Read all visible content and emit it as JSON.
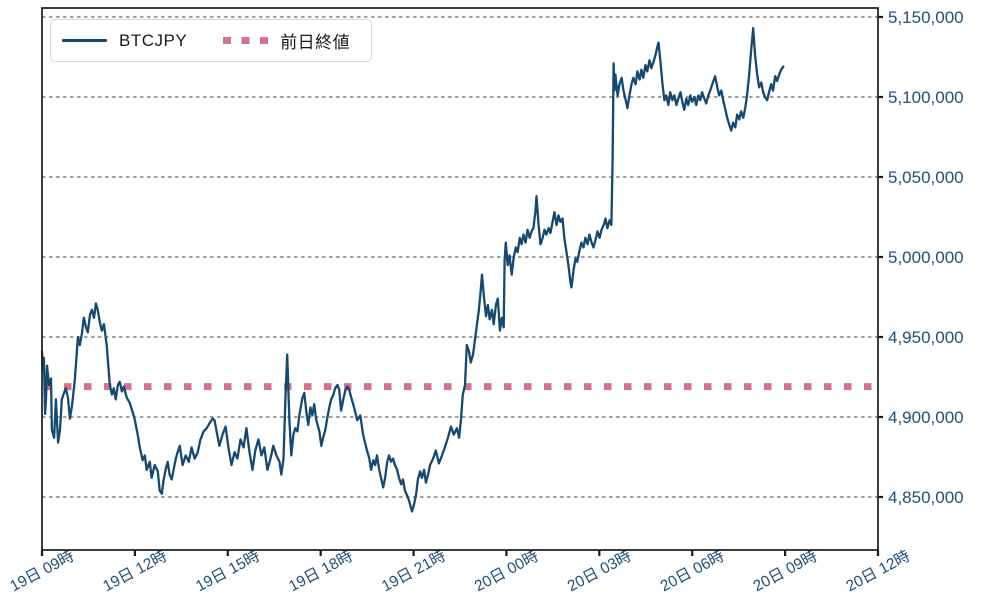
{
  "chart_data": {
    "type": "line",
    "title": "",
    "grid": "horizontal-dashed",
    "legend": {
      "position": "top-left",
      "entries": [
        {
          "label": "BTCJPY",
          "style": "solid-line"
        },
        {
          "label": "前日終値",
          "style": "dotted-line"
        }
      ]
    },
    "colors": {
      "price_line": "#17486e",
      "prev_close_line": "#d4738f",
      "axis_label": "#1f4e79",
      "grid": "#333333",
      "spine": "#1a1a1a",
      "legend_text": "#1a1a1a",
      "background": "#ffffff"
    },
    "x_axis": {
      "max_hours": 27,
      "ticks": [
        {
          "hours": 0,
          "label": "19日 09時"
        },
        {
          "hours": 3,
          "label": "19日 12時"
        },
        {
          "hours": 6,
          "label": "19日 15時"
        },
        {
          "hours": 9,
          "label": "19日 18時"
        },
        {
          "hours": 12,
          "label": "19日 21時"
        },
        {
          "hours": 15,
          "label": "20日 00時"
        },
        {
          "hours": 18,
          "label": "20日 03時"
        },
        {
          "hours": 21,
          "label": "20日 06時"
        },
        {
          "hours": 24,
          "label": "20日 09時"
        },
        {
          "hours": 27,
          "label": "20日 12時"
        }
      ]
    },
    "y_axis": {
      "side": "right",
      "tick_values": [
        4850000,
        4900000,
        4950000,
        5000000,
        5050000,
        5100000,
        5150000
      ],
      "tick_labels": [
        "4,850,000",
        "4,900,000",
        "4,950,000",
        "5,000,000",
        "5,050,000",
        "5,100,000",
        "5,150,000"
      ],
      "range": [
        4817000,
        5156000
      ]
    },
    "series_name": "BTCJPY",
    "prev_close_name": "前日終値",
    "prev_close_value": 4919000,
    "points": [
      [
        0.0,
        4941000
      ],
      [
        0.03,
        4929000
      ],
      [
        0.06,
        4937000
      ],
      [
        0.1,
        4902000
      ],
      [
        0.13,
        4911000
      ],
      [
        0.16,
        4932000
      ],
      [
        0.23,
        4920000
      ],
      [
        0.29,
        4924000
      ],
      [
        0.32,
        4892000
      ],
      [
        0.39,
        4887000
      ],
      [
        0.45,
        4911000
      ],
      [
        0.52,
        4884000
      ],
      [
        0.58,
        4892000
      ],
      [
        0.64,
        4911000
      ],
      [
        0.71,
        4915000
      ],
      [
        0.77,
        4918000
      ],
      [
        0.84,
        4912000
      ],
      [
        0.9,
        4899000
      ],
      [
        0.97,
        4907000
      ],
      [
        1.06,
        4923000
      ],
      [
        1.16,
        4950000
      ],
      [
        1.22,
        4945000
      ],
      [
        1.29,
        4952000
      ],
      [
        1.35,
        4962000
      ],
      [
        1.42,
        4956000
      ],
      [
        1.48,
        4953000
      ],
      [
        1.55,
        4964000
      ],
      [
        1.61,
        4967000
      ],
      [
        1.68,
        4962000
      ],
      [
        1.74,
        4971000
      ],
      [
        1.8,
        4967000
      ],
      [
        1.87,
        4959000
      ],
      [
        1.93,
        4954000
      ],
      [
        2.0,
        4958000
      ],
      [
        2.09,
        4945000
      ],
      [
        2.19,
        4920000
      ],
      [
        2.26,
        4914000
      ],
      [
        2.32,
        4918000
      ],
      [
        2.38,
        4911000
      ],
      [
        2.45,
        4920000
      ],
      [
        2.51,
        4922000
      ],
      [
        2.58,
        4916000
      ],
      [
        2.64,
        4919000
      ],
      [
        2.74,
        4912000
      ],
      [
        2.83,
        4909000
      ],
      [
        2.93,
        4903000
      ],
      [
        3.0,
        4898000
      ],
      [
        3.09,
        4889000
      ],
      [
        3.16,
        4881000
      ],
      [
        3.25,
        4873000
      ],
      [
        3.32,
        4876000
      ],
      [
        3.38,
        4867000
      ],
      [
        3.48,
        4872000
      ],
      [
        3.54,
        4862000
      ],
      [
        3.64,
        4870000
      ],
      [
        3.74,
        4866000
      ],
      [
        3.8,
        4854000
      ],
      [
        3.87,
        4852000
      ],
      [
        3.93,
        4861000
      ],
      [
        4.0,
        4868000
      ],
      [
        4.06,
        4872000
      ],
      [
        4.12,
        4864000
      ],
      [
        4.19,
        4861000
      ],
      [
        4.25,
        4867000
      ],
      [
        4.32,
        4874000
      ],
      [
        4.38,
        4878000
      ],
      [
        4.45,
        4882000
      ],
      [
        4.54,
        4870000
      ],
      [
        4.64,
        4876000
      ],
      [
        4.74,
        4872000
      ],
      [
        4.83,
        4881000
      ],
      [
        4.93,
        4874000
      ],
      [
        5.03,
        4878000
      ],
      [
        5.12,
        4886000
      ],
      [
        5.22,
        4891000
      ],
      [
        5.32,
        4893000
      ],
      [
        5.41,
        4896000
      ],
      [
        5.51,
        4899000
      ],
      [
        5.57,
        4898000
      ],
      [
        5.64,
        4891000
      ],
      [
        5.73,
        4882000
      ],
      [
        5.83,
        4889000
      ],
      [
        5.93,
        4894000
      ],
      [
        6.02,
        4881000
      ],
      [
        6.12,
        4870000
      ],
      [
        6.22,
        4878000
      ],
      [
        6.31,
        4874000
      ],
      [
        6.41,
        4886000
      ],
      [
        6.51,
        4881000
      ],
      [
        6.6,
        4893000
      ],
      [
        6.7,
        4878000
      ],
      [
        6.8,
        4867000
      ],
      [
        6.89,
        4879000
      ],
      [
        6.99,
        4886000
      ],
      [
        7.09,
        4876000
      ],
      [
        7.18,
        4881000
      ],
      [
        7.28,
        4867000
      ],
      [
        7.38,
        4874000
      ],
      [
        7.47,
        4882000
      ],
      [
        7.57,
        4876000
      ],
      [
        7.67,
        4872000
      ],
      [
        7.73,
        4864000
      ],
      [
        7.8,
        4874000
      ],
      [
        7.86,
        4911000
      ],
      [
        7.92,
        4939000
      ],
      [
        7.99,
        4898000
      ],
      [
        8.05,
        4876000
      ],
      [
        8.12,
        4889000
      ],
      [
        8.18,
        4893000
      ],
      [
        8.25,
        4891000
      ],
      [
        8.31,
        4901000
      ],
      [
        8.41,
        4912000
      ],
      [
        8.47,
        4915000
      ],
      [
        8.54,
        4903000
      ],
      [
        8.6,
        4895000
      ],
      [
        8.67,
        4906000
      ],
      [
        8.73,
        4901000
      ],
      [
        8.79,
        4908000
      ],
      [
        8.86,
        4898000
      ],
      [
        8.96,
        4891000
      ],
      [
        9.02,
        4882000
      ],
      [
        9.08,
        4887000
      ],
      [
        9.15,
        4892000
      ],
      [
        9.21,
        4899000
      ],
      [
        9.28,
        4906000
      ],
      [
        9.34,
        4911000
      ],
      [
        9.41,
        4914000
      ],
      [
        9.47,
        4918000
      ],
      [
        9.54,
        4920000
      ],
      [
        9.6,
        4917000
      ],
      [
        9.66,
        4904000
      ],
      [
        9.73,
        4911000
      ],
      [
        9.79,
        4916000
      ],
      [
        9.86,
        4919000
      ],
      [
        9.92,
        4917000
      ],
      [
        9.99,
        4912000
      ],
      [
        10.08,
        4906000
      ],
      [
        10.18,
        4898000
      ],
      [
        10.28,
        4901000
      ],
      [
        10.37,
        4889000
      ],
      [
        10.47,
        4881000
      ],
      [
        10.57,
        4874000
      ],
      [
        10.63,
        4867000
      ],
      [
        10.7,
        4873000
      ],
      [
        10.76,
        4870000
      ],
      [
        10.82,
        4876000
      ],
      [
        10.89,
        4867000
      ],
      [
        10.95,
        4862000
      ],
      [
        11.02,
        4856000
      ],
      [
        11.08,
        4862000
      ],
      [
        11.15,
        4872000
      ],
      [
        11.21,
        4876000
      ],
      [
        11.27,
        4872000
      ],
      [
        11.34,
        4874000
      ],
      [
        11.4,
        4870000
      ],
      [
        11.47,
        4867000
      ],
      [
        11.53,
        4862000
      ],
      [
        11.6,
        4858000
      ],
      [
        11.66,
        4861000
      ],
      [
        11.72,
        4854000
      ],
      [
        11.79,
        4851000
      ],
      [
        11.85,
        4848000
      ],
      [
        11.92,
        4843000
      ],
      [
        11.95,
        4841000
      ],
      [
        12.01,
        4845000
      ],
      [
        12.08,
        4851000
      ],
      [
        12.14,
        4861000
      ],
      [
        12.21,
        4866000
      ],
      [
        12.27,
        4862000
      ],
      [
        12.34,
        4867000
      ],
      [
        12.4,
        4859000
      ],
      [
        12.47,
        4864000
      ],
      [
        12.53,
        4870000
      ],
      [
        12.63,
        4874000
      ],
      [
        12.72,
        4879000
      ],
      [
        12.82,
        4871000
      ],
      [
        12.92,
        4876000
      ],
      [
        13.01,
        4881000
      ],
      [
        13.11,
        4887000
      ],
      [
        13.21,
        4894000
      ],
      [
        13.3,
        4889000
      ],
      [
        13.4,
        4893000
      ],
      [
        13.47,
        4887000
      ],
      [
        13.53,
        4898000
      ],
      [
        13.59,
        4914000
      ],
      [
        13.66,
        4920000
      ],
      [
        13.72,
        4945000
      ],
      [
        13.79,
        4941000
      ],
      [
        13.85,
        4934000
      ],
      [
        13.92,
        4939000
      ],
      [
        13.98,
        4948000
      ],
      [
        14.05,
        4958000
      ],
      [
        14.11,
        4967000
      ],
      [
        14.17,
        4979000
      ],
      [
        14.21,
        4989000
      ],
      [
        14.27,
        4976000
      ],
      [
        14.34,
        4963000
      ],
      [
        14.4,
        4970000
      ],
      [
        14.46,
        4961000
      ],
      [
        14.53,
        4967000
      ],
      [
        14.59,
        4958000
      ],
      [
        14.66,
        4970000
      ],
      [
        14.72,
        4974000
      ],
      [
        14.79,
        4954000
      ],
      [
        14.85,
        4962000
      ],
      [
        14.91,
        4956000
      ],
      [
        14.94,
        4998000
      ],
      [
        14.98,
        5009000
      ],
      [
        15.04,
        4995000
      ],
      [
        15.1,
        5001000
      ],
      [
        15.17,
        4989000
      ],
      [
        15.23,
        4999000
      ],
      [
        15.3,
        5006000
      ],
      [
        15.36,
        5003000
      ],
      [
        15.43,
        5012000
      ],
      [
        15.49,
        5008000
      ],
      [
        15.55,
        5014000
      ],
      [
        15.62,
        5009000
      ],
      [
        15.68,
        5017000
      ],
      [
        15.75,
        5012000
      ],
      [
        15.81,
        5016000
      ],
      [
        15.87,
        5018000
      ],
      [
        15.94,
        5029000
      ],
      [
        15.97,
        5038000
      ],
      [
        16.04,
        5020000
      ],
      [
        16.1,
        5008000
      ],
      [
        16.17,
        5012000
      ],
      [
        16.23,
        5017000
      ],
      [
        16.29,
        5014000
      ],
      [
        16.36,
        5018000
      ],
      [
        16.42,
        5015000
      ],
      [
        16.49,
        5022000
      ],
      [
        16.55,
        5028000
      ],
      [
        16.62,
        5020000
      ],
      [
        16.68,
        5026000
      ],
      [
        16.74,
        5022000
      ],
      [
        16.81,
        5024000
      ],
      [
        16.87,
        5012000
      ],
      [
        16.94,
        5003000
      ],
      [
        17.0,
        4995000
      ],
      [
        17.07,
        4984000
      ],
      [
        17.1,
        4981000
      ],
      [
        17.17,
        4992000
      ],
      [
        17.23,
        4999000
      ],
      [
        17.29,
        4997000
      ],
      [
        17.36,
        5004000
      ],
      [
        17.42,
        5009000
      ],
      [
        17.49,
        5006000
      ],
      [
        17.55,
        5012000
      ],
      [
        17.62,
        5008000
      ],
      [
        17.68,
        5014000
      ],
      [
        17.75,
        5009000
      ],
      [
        17.81,
        5006000
      ],
      [
        17.88,
        5011000
      ],
      [
        17.94,
        5016000
      ],
      [
        18.01,
        5012000
      ],
      [
        18.07,
        5017000
      ],
      [
        18.14,
        5020000
      ],
      [
        18.2,
        5024000
      ],
      [
        18.26,
        5018000
      ],
      [
        18.33,
        5023000
      ],
      [
        18.39,
        5020000
      ],
      [
        18.43,
        5061000
      ],
      [
        18.46,
        5121000
      ],
      [
        18.49,
        5104000
      ],
      [
        18.52,
        5114000
      ],
      [
        18.59,
        5101000
      ],
      [
        18.65,
        5108000
      ],
      [
        18.72,
        5112000
      ],
      [
        18.78,
        5104000
      ],
      [
        18.85,
        5098000
      ],
      [
        18.91,
        5093000
      ],
      [
        18.97,
        5101000
      ],
      [
        19.04,
        5108000
      ],
      [
        19.1,
        5112000
      ],
      [
        19.17,
        5108000
      ],
      [
        19.23,
        5116000
      ],
      [
        19.3,
        5111000
      ],
      [
        19.36,
        5117000
      ],
      [
        19.42,
        5112000
      ],
      [
        19.49,
        5120000
      ],
      [
        19.55,
        5116000
      ],
      [
        19.62,
        5123000
      ],
      [
        19.68,
        5118000
      ],
      [
        19.75,
        5122000
      ],
      [
        19.81,
        5126000
      ],
      [
        19.87,
        5131000
      ],
      [
        19.91,
        5134000
      ],
      [
        19.97,
        5123000
      ],
      [
        20.04,
        5108000
      ],
      [
        20.1,
        5098000
      ],
      [
        20.16,
        5101000
      ],
      [
        20.23,
        5095000
      ],
      [
        20.29,
        5103000
      ],
      [
        20.36,
        5098000
      ],
      [
        20.42,
        5101000
      ],
      [
        20.49,
        5095000
      ],
      [
        20.55,
        5099000
      ],
      [
        20.62,
        5103000
      ],
      [
        20.68,
        5097000
      ],
      [
        20.74,
        5092000
      ],
      [
        20.81,
        5099000
      ],
      [
        20.87,
        5095000
      ],
      [
        20.94,
        5101000
      ],
      [
        21.0,
        5097000
      ],
      [
        21.07,
        5100000
      ],
      [
        21.13,
        5095000
      ],
      [
        21.2,
        5101000
      ],
      [
        21.26,
        5098000
      ],
      [
        21.32,
        5103000
      ],
      [
        21.39,
        5099000
      ],
      [
        21.45,
        5096000
      ],
      [
        21.52,
        5101000
      ],
      [
        21.58,
        5104000
      ],
      [
        21.65,
        5108000
      ],
      [
        21.74,
        5113000
      ],
      [
        21.81,
        5106000
      ],
      [
        21.87,
        5101000
      ],
      [
        21.94,
        5104000
      ],
      [
        22.0,
        5098000
      ],
      [
        22.07,
        5092000
      ],
      [
        22.13,
        5087000
      ],
      [
        22.19,
        5083000
      ],
      [
        22.26,
        5079000
      ],
      [
        22.32,
        5084000
      ],
      [
        22.39,
        5081000
      ],
      [
        22.45,
        5089000
      ],
      [
        22.52,
        5086000
      ],
      [
        22.58,
        5091000
      ],
      [
        22.65,
        5087000
      ],
      [
        22.71,
        5093000
      ],
      [
        22.77,
        5101000
      ],
      [
        22.84,
        5114000
      ],
      [
        22.9,
        5129000
      ],
      [
        22.97,
        5143000
      ],
      [
        23.03,
        5126000
      ],
      [
        23.1,
        5114000
      ],
      [
        23.16,
        5106000
      ],
      [
        23.23,
        5109000
      ],
      [
        23.29,
        5103000
      ],
      [
        23.35,
        5100000
      ],
      [
        23.42,
        5098000
      ],
      [
        23.48,
        5103000
      ],
      [
        23.55,
        5108000
      ],
      [
        23.61,
        5104000
      ],
      [
        23.68,
        5113000
      ],
      [
        23.74,
        5110000
      ],
      [
        23.81,
        5114000
      ],
      [
        23.87,
        5117000
      ],
      [
        23.94,
        5119000
      ]
    ]
  }
}
